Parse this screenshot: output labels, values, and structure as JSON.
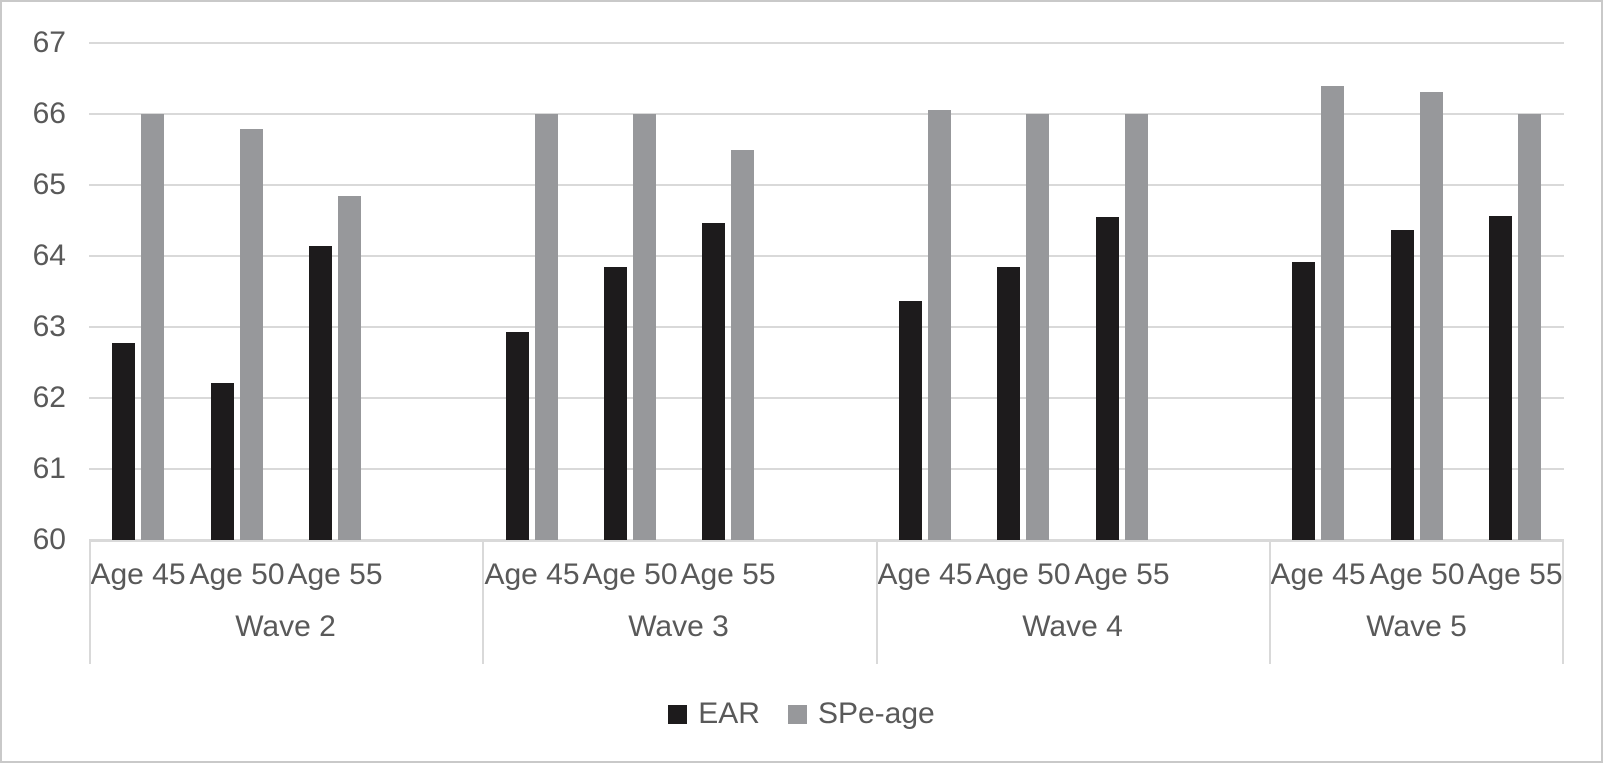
{
  "chart_data": {
    "type": "bar",
    "title": "",
    "grid": true,
    "legend_position": "bottom",
    "y_axis": {
      "min": 60,
      "max": 67,
      "step": 1,
      "ticks": [
        67,
        66,
        65,
        64,
        63,
        62,
        61,
        60
      ]
    },
    "x_axis": {
      "groups": [
        {
          "label": "Wave 2",
          "categories": [
            "Age 45",
            "Age 50",
            "Age 55"
          ]
        },
        {
          "label": "Wave 3",
          "categories": [
            "Age 45",
            "Age 50",
            "Age 55"
          ]
        },
        {
          "label": "Wave 4",
          "categories": [
            "Age 45",
            "Age 50",
            "Age 55"
          ]
        },
        {
          "label": "Wave 5",
          "categories": [
            "Age 45",
            "Age 50",
            "Age 55"
          ]
        }
      ]
    },
    "series": [
      {
        "name": "EAR",
        "color": "#1d1b1c",
        "values": [
          [
            62.78,
            62.21,
            64.14
          ],
          [
            62.93,
            63.84,
            64.46
          ],
          [
            63.36,
            63.85,
            64.55
          ],
          [
            63.91,
            64.37,
            64.56
          ]
        ]
      },
      {
        "name": "SPe-age",
        "color": "#97989b",
        "values": [
          [
            66.0,
            65.79,
            64.85
          ],
          [
            66.0,
            66.0,
            65.49
          ],
          [
            66.05,
            66.0,
            66.0
          ],
          [
            66.39,
            66.31,
            66.0
          ]
        ]
      }
    ]
  },
  "colors": {
    "axis_text": "#595959",
    "gridline": "#d9d9d9",
    "frame_border": "#c9c9c9"
  }
}
